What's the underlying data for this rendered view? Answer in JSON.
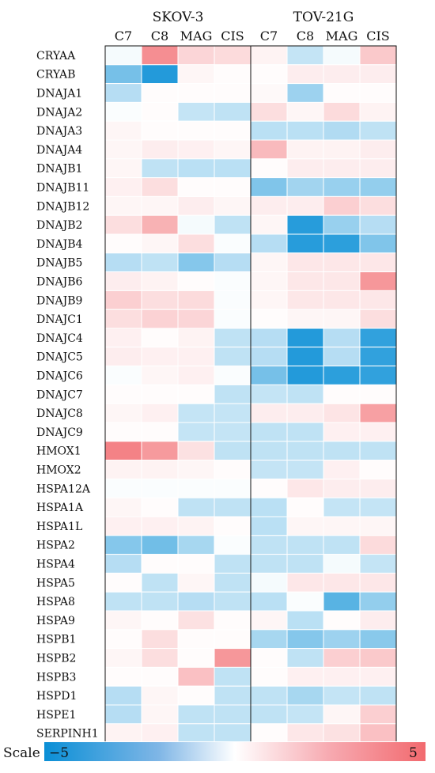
{
  "chart_data": {
    "type": "heatmap",
    "groups": [
      {
        "name": "SKOV-3",
        "columns": [
          "C7",
          "C8",
          "MAG",
          "CIS"
        ]
      },
      {
        "name": "TOV-21G",
        "columns": [
          "C7",
          "C8",
          "MAG",
          "CIS"
        ]
      }
    ],
    "rows": [
      "CRYAA",
      "CRYAB",
      "DNAJA1",
      "DNAJA2",
      "DNAJA3",
      "DNAJA4",
      "DNAJB1",
      "DNAJB11",
      "DNAJB12",
      "DNAJB2",
      "DNAJB4",
      "DNAJB5",
      "DNAJB6",
      "DNAJB9",
      "DNAJC1",
      "DNAJC4",
      "DNAJC5",
      "DNAJC6",
      "DNAJC7",
      "DNAJC8",
      "DNAJC9",
      "HMOX1",
      "HMOX2",
      "HSPA12A",
      "HSPA1A",
      "HSPA1L",
      "HSPA2",
      "HSPA4",
      "HSPA5",
      "HSPA8",
      "HSPA9",
      "HSPB1",
      "HSPB2",
      "HSPB3",
      "HSPD1",
      "HSPE1",
      "SERPINH1"
    ],
    "values": [
      [
        -0.2,
        3.8,
        1.4,
        1.2,
        0.4,
        -1.2,
        -0.2,
        1.8
      ],
      [
        -2.8,
        -4.5,
        0.3,
        0.1,
        0.1,
        0.6,
        0.6,
        0.6
      ],
      [
        -1.5,
        0.1,
        0.1,
        0.1,
        0.2,
        -2.0,
        0.1,
        0.1
      ],
      [
        -0.1,
        0.1,
        -1.2,
        -1.3,
        1.1,
        0.3,
        1.2,
        0.4
      ],
      [
        0.3,
        0.1,
        0.1,
        0.1,
        -1.4,
        -1.4,
        -1.6,
        -1.3
      ],
      [
        0.3,
        0.6,
        0.5,
        0.3,
        2.3,
        0.4,
        0.4,
        0.6
      ],
      [
        0.3,
        -1.3,
        -1.4,
        -1.4,
        0.1,
        0.6,
        0.6,
        0.6
      ],
      [
        0.5,
        1.1,
        0.1,
        0.1,
        -2.6,
        -1.9,
        -2.1,
        -2.2
      ],
      [
        0.3,
        0.3,
        0.6,
        0.3,
        0.6,
        0.6,
        1.6,
        1.1
      ],
      [
        1.1,
        2.6,
        -0.2,
        -1.3,
        0.3,
        -4.4,
        -2.1,
        -1.5
      ],
      [
        0.1,
        0.3,
        1.1,
        -0.1,
        -1.5,
        -4.4,
        -4.3,
        -2.6
      ],
      [
        -1.5,
        -1.3,
        -2.5,
        -1.5,
        0.3,
        0.8,
        0.8,
        0.8
      ],
      [
        0.6,
        0.4,
        0.1,
        -0.1,
        0.3,
        0.8,
        0.8,
        3.5
      ],
      [
        1.6,
        1.1,
        1.2,
        -0.1,
        0.3,
        0.8,
        0.8,
        0.8
      ],
      [
        1.1,
        1.5,
        1.4,
        -0.1,
        0.1,
        0.3,
        0.3,
        1.1
      ],
      [
        0.5,
        0.1,
        0.4,
        -1.3,
        -1.5,
        -4.5,
        -1.5,
        -4.2
      ],
      [
        0.6,
        0.5,
        0.5,
        -1.3,
        -1.5,
        -4.5,
        -1.5,
        -4.2
      ],
      [
        -0.1,
        0.3,
        0.5,
        -0.1,
        -2.8,
        -4.5,
        -4.3,
        -4.2
      ],
      [
        0.1,
        0.1,
        0.1,
        -1.3,
        -1.2,
        -1.3,
        0.1,
        0.1
      ],
      [
        0.3,
        0.5,
        -1.2,
        -1.2,
        0.6,
        0.6,
        0.9,
        3.2
      ],
      [
        0.1,
        0.1,
        -1.2,
        -1.2,
        -1.3,
        -1.3,
        0.5,
        0.5
      ],
      [
        4.2,
        3.4,
        1.0,
        -1.3,
        -1.3,
        -1.3,
        -1.3,
        -1.3
      ],
      [
        0.4,
        0.4,
        0.3,
        0.1,
        -1.2,
        -1.2,
        0.5,
        0.1
      ],
      [
        -0.1,
        -0.1,
        -0.1,
        -0.1,
        0.1,
        0.8,
        0.6,
        0.6
      ],
      [
        0.3,
        0.1,
        -1.3,
        -1.3,
        -1.4,
        0.1,
        -1.2,
        -1.2
      ],
      [
        0.5,
        0.5,
        0.4,
        0.1,
        -1.4,
        0.3,
        0.3,
        0.3
      ],
      [
        -2.5,
        -2.9,
        -1.8,
        -0.1,
        -1.3,
        -1.3,
        -1.3,
        1.2
      ],
      [
        -1.5,
        0.1,
        0.1,
        -1.3,
        -1.3,
        -1.3,
        -0.2,
        -1.2
      ],
      [
        0.1,
        -1.3,
        0.3,
        -1.3,
        -0.2,
        0.8,
        0.8,
        0.8
      ],
      [
        -1.3,
        -1.3,
        -1.5,
        -1.3,
        -1.4,
        -0.1,
        -3.4,
        -2.2
      ],
      [
        0.3,
        0.1,
        1.0,
        0.1,
        0.3,
        -1.4,
        0.1,
        0.6
      ],
      [
        0.1,
        1.1,
        0.1,
        0.1,
        -1.8,
        -2.5,
        -2.0,
        -2.4
      ],
      [
        0.3,
        1.1,
        0.1,
        3.5,
        0.1,
        -1.3,
        1.6,
        1.8
      ],
      [
        0.1,
        0.1,
        2.1,
        -1.3,
        0.1,
        0.5,
        0.5,
        0.5
      ],
      [
        -1.5,
        0.3,
        0.1,
        -1.3,
        -1.3,
        -1.8,
        -1.2,
        -1.3
      ],
      [
        -1.5,
        0.3,
        -1.3,
        -1.3,
        -1.3,
        -1.2,
        0.3,
        1.6
      ],
      [
        0.4,
        0.5,
        -1.3,
        -1.3,
        0.1,
        0.8,
        1.0,
        2.1
      ]
    ],
    "scale": {
      "label": "Scale",
      "min": -5,
      "max": 5,
      "min_label": "−5",
      "max_label": "5"
    },
    "colors": {
      "low": "#0a8fd6",
      "mid": "#ffffff",
      "high": "#f26a6f"
    }
  }
}
